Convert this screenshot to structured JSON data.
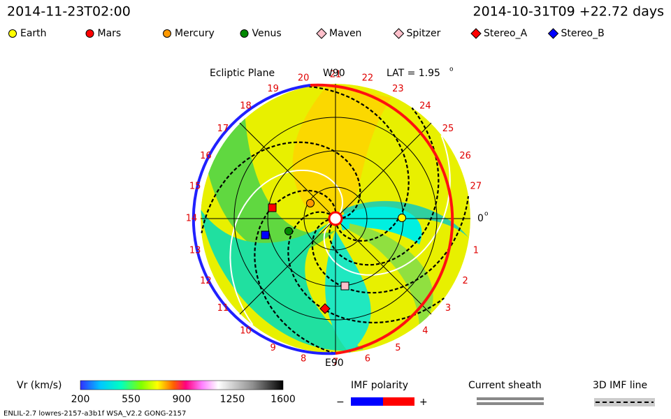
{
  "header": {
    "left_time": "2014-11-23T02:00",
    "right_time": "2014-10-31T09 +22.72 days"
  },
  "legend": [
    {
      "name": "Earth",
      "color": "#ffff00",
      "shape": "circle"
    },
    {
      "name": "Mars",
      "color": "#ff0000",
      "shape": "circle"
    },
    {
      "name": "Mercury",
      "color": "#ff9900",
      "shape": "circle"
    },
    {
      "name": "Venus",
      "color": "#008800",
      "shape": "circle"
    },
    {
      "name": "Maven",
      "color": "#ffc0cb",
      "shape": "diamond"
    },
    {
      "name": "Spitzer",
      "color": "#ffc0cb",
      "shape": "diamond"
    },
    {
      "name": "Stereo_A",
      "color": "#ff0000",
      "shape": "diamond"
    },
    {
      "name": "Stereo_B",
      "color": "#0000ff",
      "shape": "diamond"
    }
  ],
  "plot": {
    "title": "Ecliptic Plane",
    "top_label": "W90",
    "bottom_label": "E90",
    "lat_label": "LAT = 1.95",
    "lat_sup": "o",
    "zero_label": "0",
    "zero_sup": "o",
    "rim_labels": [
      "1",
      "2",
      "3",
      "4",
      "5",
      "6",
      "7",
      "8",
      "9",
      "10",
      "11",
      "12",
      "13",
      "14",
      "15",
      "16",
      "17",
      "18",
      "19",
      "20",
      "21",
      "22",
      "23",
      "24",
      "25",
      "26",
      "27"
    ]
  },
  "colorbar": {
    "label": "Vr (km/s)",
    "ticks": [
      "200",
      "550",
      "900",
      "1250",
      "1600"
    ]
  },
  "imf": {
    "title": "IMF polarity",
    "minus": "−",
    "plus": "+"
  },
  "sheath": "Current sheath",
  "imf_line": "3D IMF line",
  "footer": "ENLIL-2.7 lowres-2157-a3b1f WSA_V2.2 GONG-2157"
}
